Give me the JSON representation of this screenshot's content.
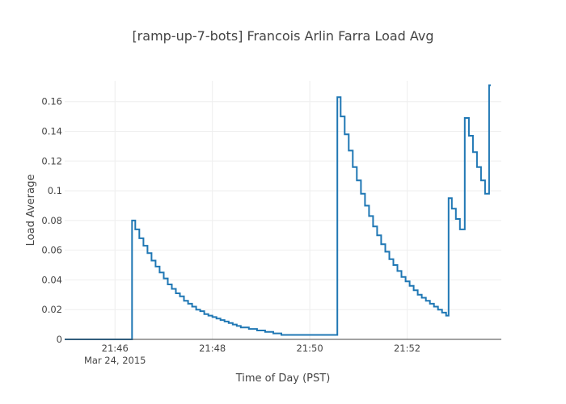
{
  "chart_data": {
    "type": "line",
    "title": "[ramp-up-7-bots] Francois Arlin Farra Load Avg",
    "xlabel": "Time of Day (PST)",
    "ylabel": "Load Average",
    "x_ticks": [
      {
        "t": "21:46:00",
        "label": "21:46",
        "sublabel": "Mar 24, 2015"
      },
      {
        "t": "21:48:00",
        "label": "21:48",
        "sublabel": ""
      },
      {
        "t": "21:50:00",
        "label": "21:50",
        "sublabel": ""
      },
      {
        "t": "21:52:00",
        "label": "21:52",
        "sublabel": ""
      }
    ],
    "xlim": [
      "21:44:58",
      "21:53:56"
    ],
    "ylim": [
      0,
      0.174
    ],
    "y_ticks": [
      0,
      0.02,
      0.04,
      0.06,
      0.08,
      0.1,
      0.12,
      0.14,
      0.16
    ],
    "y_tick_labels": [
      "0",
      "0.02",
      "0.04",
      "0.06",
      "0.08",
      "0.1",
      "0.12",
      "0.14",
      "0.16"
    ],
    "grid": true,
    "line_shape": "step",
    "series": [
      {
        "name": "",
        "color": "#1f77b4",
        "points": [
          [
            "21:44:58",
            0
          ],
          [
            "21:46:20",
            0
          ],
          [
            "21:46:21",
            0.08
          ],
          [
            "21:46:25",
            0.074
          ],
          [
            "21:46:30",
            0.068
          ],
          [
            "21:46:35",
            0.063
          ],
          [
            "21:46:40",
            0.058
          ],
          [
            "21:46:45",
            0.053
          ],
          [
            "21:46:50",
            0.049
          ],
          [
            "21:46:55",
            0.045
          ],
          [
            "21:47:00",
            0.041
          ],
          [
            "21:47:05",
            0.037
          ],
          [
            "21:47:10",
            0.034
          ],
          [
            "21:47:15",
            0.031
          ],
          [
            "21:47:20",
            0.029
          ],
          [
            "21:47:25",
            0.026
          ],
          [
            "21:47:30",
            0.024
          ],
          [
            "21:47:35",
            0.022
          ],
          [
            "21:47:40",
            0.02
          ],
          [
            "21:47:45",
            0.019
          ],
          [
            "21:47:50",
            0.017
          ],
          [
            "21:47:55",
            0.016
          ],
          [
            "21:48:00",
            0.015
          ],
          [
            "21:48:05",
            0.014
          ],
          [
            "21:48:10",
            0.013
          ],
          [
            "21:48:15",
            0.012
          ],
          [
            "21:48:20",
            0.011
          ],
          [
            "21:48:25",
            0.01
          ],
          [
            "21:48:30",
            0.009
          ],
          [
            "21:48:35",
            0.008
          ],
          [
            "21:48:45",
            0.007
          ],
          [
            "21:48:55",
            0.006
          ],
          [
            "21:49:05",
            0.005
          ],
          [
            "21:49:15",
            0.004
          ],
          [
            "21:49:25",
            0.003
          ],
          [
            "21:50:33",
            0.003
          ],
          [
            "21:50:34",
            0.163
          ],
          [
            "21:50:38",
            0.15
          ],
          [
            "21:50:43",
            0.138
          ],
          [
            "21:50:48",
            0.127
          ],
          [
            "21:50:53",
            0.116
          ],
          [
            "21:50:58",
            0.107
          ],
          [
            "21:51:03",
            0.098
          ],
          [
            "21:51:08",
            0.09
          ],
          [
            "21:51:13",
            0.083
          ],
          [
            "21:51:18",
            0.076
          ],
          [
            "21:51:23",
            0.07
          ],
          [
            "21:51:28",
            0.064
          ],
          [
            "21:51:33",
            0.059
          ],
          [
            "21:51:38",
            0.054
          ],
          [
            "21:51:43",
            0.05
          ],
          [
            "21:51:48",
            0.046
          ],
          [
            "21:51:53",
            0.042
          ],
          [
            "21:51:58",
            0.039
          ],
          [
            "21:52:03",
            0.036
          ],
          [
            "21:52:08",
            0.033
          ],
          [
            "21:52:13",
            0.03
          ],
          [
            "21:52:18",
            0.028
          ],
          [
            "21:52:23",
            0.026
          ],
          [
            "21:52:28",
            0.024
          ],
          [
            "21:52:33",
            0.022
          ],
          [
            "21:52:38",
            0.02
          ],
          [
            "21:52:43",
            0.018
          ],
          [
            "21:52:48",
            0.016
          ],
          [
            "21:52:50",
            0.016
          ],
          [
            "21:52:51",
            0.095
          ],
          [
            "21:52:55",
            0.088
          ],
          [
            "21:53:00",
            0.081
          ],
          [
            "21:53:05",
            0.074
          ],
          [
            "21:53:10",
            0.074
          ],
          [
            "21:53:11",
            0.149
          ],
          [
            "21:53:16",
            0.137
          ],
          [
            "21:53:21",
            0.126
          ],
          [
            "21:53:26",
            0.116
          ],
          [
            "21:53:31",
            0.107
          ],
          [
            "21:53:36",
            0.098
          ],
          [
            "21:53:40",
            0.098
          ],
          [
            "21:53:41",
            0.171
          ],
          [
            "21:53:43",
            0.171
          ]
        ]
      }
    ]
  }
}
